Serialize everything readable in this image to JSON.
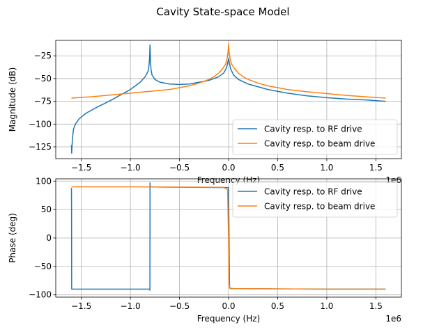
{
  "figure": {
    "suptitle": "Cavity State-space Model"
  },
  "chart_data": [
    {
      "type": "line",
      "title": "",
      "xlabel": "Frequency (Hz)",
      "ylabel": "Magnitude (dB)",
      "x_offset_label": "1e6",
      "xlim": [
        -1.76,
        1.76
      ],
      "ylim": [
        -138,
        -8
      ],
      "xticks": [
        -1.5,
        -1.0,
        -0.5,
        0.0,
        0.5,
        1.0,
        1.5
      ],
      "xtick_labels": [
        "−1.5",
        "−1.0",
        "−0.5",
        "0.0",
        "0.5",
        "1.0",
        "1.5"
      ],
      "yticks": [
        -125,
        -100,
        -75,
        -50,
        -25
      ],
      "ytick_labels": [
        "−125",
        "−100",
        "−75",
        "−50",
        "−25"
      ],
      "grid": true,
      "legend_position": "lower-right",
      "series": [
        {
          "name": "Cavity resp. to RF drive",
          "color": "#1f77b4",
          "x": [
            -1.6,
            -1.598,
            -1.595,
            -1.59,
            -1.58,
            -1.56,
            -1.52,
            -1.45,
            -1.35,
            -1.2,
            -1.1,
            -1.0,
            -0.9,
            -0.85,
            -0.82,
            -0.81,
            -0.805,
            -0.8,
            -0.795,
            -0.79,
            -0.78,
            -0.75,
            -0.7,
            -0.6,
            -0.5,
            -0.4,
            -0.3,
            -0.2,
            -0.1,
            -0.05,
            -0.02,
            0.0,
            0.02,
            0.05,
            0.1,
            0.2,
            0.4,
            0.6,
            0.8,
            1.0,
            1.2,
            1.4,
            1.6
          ],
          "y": [
            -123,
            -132,
            -126,
            -116,
            -106,
            -100,
            -94,
            -88,
            -82,
            -74,
            -68,
            -62,
            -54,
            -48,
            -42,
            -35,
            -28,
            -13,
            -30,
            -40,
            -46,
            -51,
            -54,
            -56,
            -56.5,
            -56,
            -54,
            -52,
            -48,
            -44,
            -38,
            -28,
            -39,
            -46,
            -51,
            -56,
            -62,
            -66,
            -69,
            -71,
            -72.5,
            -73.5,
            -75
          ]
        },
        {
          "name": "Cavity resp. to beam drive",
          "color": "#ff7f0e",
          "x": [
            -1.6,
            -1.4,
            -1.2,
            -1.0,
            -0.8,
            -0.6,
            -0.4,
            -0.3,
            -0.2,
            -0.15,
            -0.1,
            -0.06,
            -0.03,
            -0.015,
            -0.005,
            0.0,
            0.005,
            0.015,
            0.03,
            0.06,
            0.1,
            0.15,
            0.2,
            0.3,
            0.4,
            0.6,
            0.8,
            1.0,
            1.2,
            1.4,
            1.6
          ],
          "y": [
            -71.5,
            -70,
            -68,
            -66,
            -64,
            -62,
            -58,
            -55,
            -51,
            -48,
            -44,
            -39,
            -34,
            -28,
            -20,
            -12,
            -20,
            -28,
            -34,
            -39,
            -44,
            -48,
            -51,
            -55,
            -58,
            -62,
            -64.5,
            -66.5,
            -68.5,
            -70,
            -71.5
          ]
        }
      ]
    },
    {
      "type": "line",
      "title": "",
      "xlabel": "Frequency (Hz)",
      "ylabel": "Phase (deg)",
      "x_offset_label": "1e6",
      "xlim": [
        -1.76,
        1.76
      ],
      "ylim": [
        -104,
        104
      ],
      "xticks": [
        -1.5,
        -1.0,
        -0.5,
        0.0,
        0.5,
        1.0,
        1.5
      ],
      "xtick_labels": [
        "−1.5",
        "−1.0",
        "−0.5",
        "0.0",
        "0.5",
        "1.0",
        "1.5"
      ],
      "yticks": [
        -100,
        -50,
        0,
        50,
        100
      ],
      "ytick_labels": [
        "−100",
        "−50",
        "0",
        "50",
        "100"
      ],
      "grid": true,
      "legend_position": "upper-right",
      "series": [
        {
          "name": "Cavity resp. to RF drive",
          "color": "#1f77b4",
          "x": [
            -1.6,
            -1.599,
            -1.598,
            -1.2,
            -0.802,
            -0.801,
            -0.8,
            -0.799,
            -0.7,
            -0.3,
            0.0,
            0.005,
            0.01,
            0.02,
            0.5,
            1.0,
            1.6
          ],
          "y": [
            88,
            40,
            -90,
            -90,
            -90,
            -92,
            97,
            90,
            89.5,
            89,
            88.5,
            0,
            -87,
            -89,
            -89.5,
            -90,
            -90
          ]
        },
        {
          "name": "Cavity resp. to beam drive",
          "color": "#ff7f0e",
          "x": [
            -1.6,
            -1.0,
            -0.5,
            -0.05,
            -0.01,
            0.0,
            0.005,
            0.01,
            0.05,
            0.5,
            1.0,
            1.6
          ],
          "y": [
            90,
            90,
            89.5,
            89,
            85,
            0,
            -80,
            -88,
            -89,
            -89.5,
            -90,
            -90
          ]
        }
      ]
    }
  ]
}
